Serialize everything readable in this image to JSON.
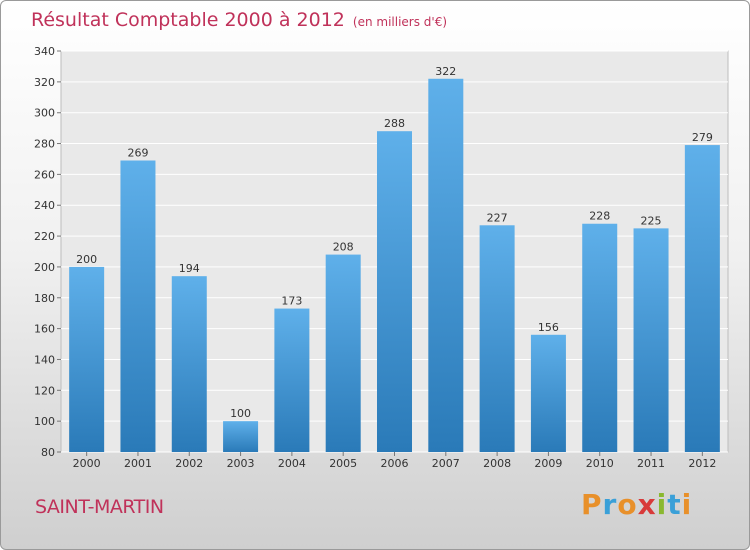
{
  "header": {
    "title": "Résultat Comptable 2000 à 2012",
    "subtitle": "(en milliers d'€)"
  },
  "footer": {
    "place": "SAINT-MARTIN",
    "logo": "Proxiti"
  },
  "colors": {
    "title": "#c0325a",
    "bar_light": "#5fb0ea",
    "bar_dark": "#2a7ab8",
    "logo_letters": [
      "#e8902a",
      "#3aa0d8",
      "#e8902a",
      "#d83a3a",
      "#8ab830",
      "#3aa0d8",
      "#e8902a"
    ]
  },
  "chart_data": {
    "type": "bar",
    "title": "Résultat Comptable 2000 à 2012",
    "subtitle": "(en milliers d'€)",
    "categories": [
      "2000",
      "2001",
      "2002",
      "2003",
      "2004",
      "2005",
      "2006",
      "2007",
      "2008",
      "2009",
      "2010",
      "2011",
      "2012"
    ],
    "values": [
      200,
      269,
      194,
      100,
      173,
      208,
      288,
      322,
      227,
      156,
      228,
      225,
      279
    ],
    "ylim": [
      80,
      340
    ],
    "yticks": [
      80,
      100,
      120,
      140,
      160,
      180,
      200,
      220,
      240,
      260,
      280,
      300,
      320,
      340
    ],
    "grid": true,
    "legend": "none"
  }
}
